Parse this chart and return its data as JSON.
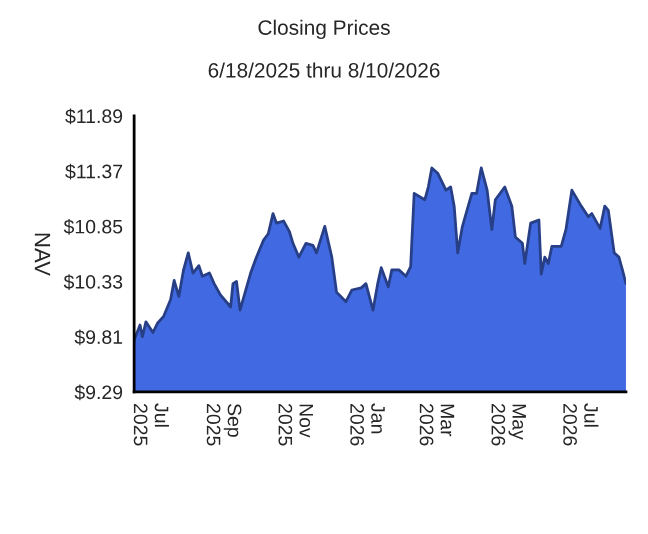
{
  "chart_data": {
    "type": "area",
    "title": "Closing Prices",
    "subtitle": "6/18/2025 thru 8/10/2026",
    "ylabel": "NAV",
    "x": [
      "2025-06-18",
      "2025-06-23",
      "2025-06-25",
      "2025-06-28",
      "2025-07-04",
      "2025-07-08",
      "2025-07-13",
      "2025-07-19",
      "2025-07-22",
      "2025-07-26",
      "2025-07-30",
      "2025-08-03",
      "2025-08-07",
      "2025-08-12",
      "2025-08-15",
      "2025-08-21",
      "2025-08-25",
      "2025-08-30",
      "2025-09-08",
      "2025-09-10",
      "2025-09-13",
      "2025-09-16",
      "2025-09-25",
      "2025-09-30",
      "2025-10-06",
      "2025-10-10",
      "2025-10-14",
      "2025-10-17",
      "2025-10-23",
      "2025-10-28",
      "2025-10-31",
      "2025-11-05",
      "2025-11-11",
      "2025-11-17",
      "2025-11-20",
      "2025-11-27",
      "2025-12-03",
      "2025-12-07",
      "2025-12-15",
      "2025-12-20",
      "2025-12-28",
      "2026-01-01",
      "2026-01-07",
      "2026-01-11",
      "2026-01-14",
      "2026-01-20",
      "2026-01-23",
      "2026-01-29",
      "2026-02-04",
      "2026-02-08",
      "2026-02-11",
      "2026-02-20",
      "2026-02-23",
      "2026-02-26",
      "2026-03-03",
      "2026-03-10",
      "2026-03-14",
      "2026-03-17",
      "2026-03-20",
      "2026-03-24",
      "2026-04-01",
      "2026-04-05",
      "2026-04-09",
      "2026-04-14",
      "2026-04-18",
      "2026-04-21",
      "2026-04-29",
      "2026-05-05",
      "2026-05-08",
      "2026-05-14",
      "2026-05-16",
      "2026-05-21",
      "2026-05-28",
      "2026-05-30",
      "2026-06-02",
      "2026-06-05",
      "2026-06-08",
      "2026-06-16",
      "2026-06-20",
      "2026-06-25",
      "2026-07-03",
      "2026-07-09",
      "2026-07-12",
      "2026-07-19",
      "2026-07-23",
      "2026-07-26",
      "2026-07-31",
      "2026-08-04",
      "2026-08-07",
      "2026-08-10"
    ],
    "series": [
      {
        "color": "#4169e1",
        "values": [
          9.78,
          9.92,
          9.81,
          9.95,
          9.85,
          9.94,
          10.0,
          10.16,
          10.34,
          10.19,
          10.44,
          10.6,
          10.41,
          10.48,
          10.38,
          10.41,
          10.31,
          10.21,
          10.09,
          10.31,
          10.33,
          10.06,
          10.41,
          10.56,
          10.72,
          10.78,
          10.97,
          10.88,
          10.9,
          10.8,
          10.69,
          10.56,
          10.69,
          10.67,
          10.6,
          10.85,
          10.56,
          10.23,
          10.14,
          10.25,
          10.27,
          10.31,
          10.06,
          10.31,
          10.46,
          10.28,
          10.44,
          10.44,
          10.38,
          10.47,
          11.16,
          11.1,
          11.22,
          11.4,
          11.35,
          11.19,
          11.22,
          11.04,
          10.6,
          10.85,
          11.16,
          11.16,
          11.4,
          11.19,
          10.82,
          11.1,
          11.22,
          11.04,
          10.75,
          10.69,
          10.5,
          10.88,
          10.91,
          10.4,
          10.56,
          10.5,
          10.66,
          10.66,
          10.82,
          11.19,
          11.04,
          10.94,
          10.97,
          10.83,
          11.04,
          11.0,
          10.6,
          10.56,
          10.44,
          10.31
        ]
      }
    ],
    "xlim": [
      "2025-06-18",
      "2026-08-10"
    ],
    "xticks": [
      {
        "value": "2025-07-01",
        "label": "Jul\n2025"
      },
      {
        "value": "2025-09-01",
        "label": "Sep\n2025"
      },
      {
        "value": "2025-11-01",
        "label": "Nov\n2025"
      },
      {
        "value": "2026-01-01",
        "label": "Jan\n2026"
      },
      {
        "value": "2026-03-01",
        "label": "Mar\n2026"
      },
      {
        "value": "2026-05-01",
        "label": "May\n2026"
      },
      {
        "value": "2026-07-01",
        "label": "Jul\n2026"
      }
    ],
    "ylim": [
      9.29,
      11.89
    ],
    "yticks": [
      {
        "value": 9.29,
        "label": "$9.29"
      },
      {
        "value": 9.81,
        "label": "$9.81"
      },
      {
        "value": 10.33,
        "label": "$10.33"
      },
      {
        "value": 10.85,
        "label": "$10.85"
      },
      {
        "value": 11.37,
        "label": "$11.37"
      },
      {
        "value": 11.89,
        "label": "$11.89"
      }
    ],
    "grid": false,
    "legend": false
  }
}
